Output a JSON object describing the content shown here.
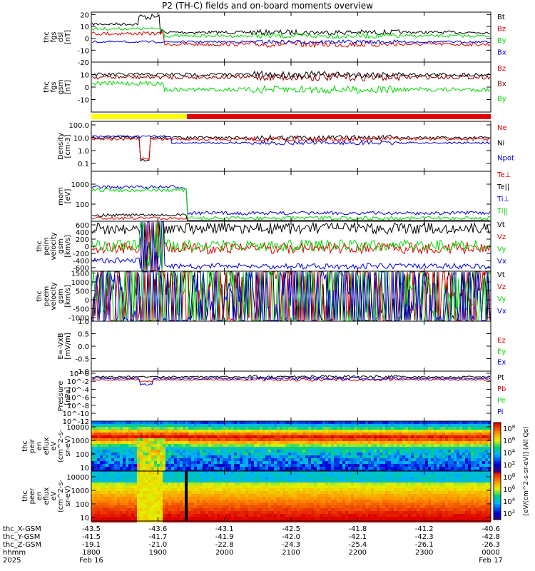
{
  "title": "P2 (TH-C) fields and on-board moments overview",
  "colors": {
    "black": "#000000",
    "red": "#e00000",
    "green": "#00d800",
    "blue": "#0000e0",
    "darkred": "#8b0000",
    "yellow": "#ffff00"
  },
  "chart_data": [
    {
      "type": "line",
      "id": "fgs_dsl",
      "ylabel": [
        "thc",
        "fgs",
        "dsl",
        "[nT]"
      ],
      "ylim": [
        -20,
        22
      ],
      "ticks": [
        "20",
        "10",
        "0",
        "-10",
        "-20"
      ],
      "legend": [
        "Bt",
        "Bz",
        "By",
        "Bx"
      ],
      "legend_colors": [
        "black",
        "red",
        "green",
        "blue"
      ]
    },
    {
      "type": "line",
      "id": "fgs_gsm",
      "ylabel": [
        "thc",
        "fgs",
        "gsm",
        "[nT]"
      ],
      "ylim": [
        -20,
        20
      ],
      "ticks": [
        "10",
        "0",
        "-10"
      ],
      "legend": [
        "Bz",
        "Bx",
        "By"
      ],
      "legend_colors": [
        "red",
        "darkred",
        "green"
      ]
    },
    {
      "type": "bar",
      "id": "mode_bar",
      "segments": [
        {
          "from": "1800",
          "to": "1918",
          "color": "yellow"
        },
        {
          "from": "1918",
          "to": "0000",
          "color": "red"
        }
      ]
    },
    {
      "type": "line",
      "id": "density",
      "scale": "log",
      "ylabel": [
        "Density",
        "[cm-3]"
      ],
      "ticks": [
        "100.0",
        "10.0",
        "1.0",
        "0.1"
      ],
      "legend": [
        "Ne",
        "Ni",
        "Npot"
      ],
      "legend_colors": [
        "red",
        "black",
        "blue"
      ]
    },
    {
      "type": "line",
      "id": "temp",
      "scale": "log",
      "ylabel": [
        "mom",
        "[eV]"
      ],
      "ticks": [
        "1000",
        "100"
      ],
      "legend": [
        "Te⊥",
        "Te||",
        "Ti⊥",
        "Ti||"
      ],
      "legend_colors": [
        "red",
        "black",
        "blue",
        "green"
      ]
    },
    {
      "type": "line",
      "id": "peim_vel",
      "ylabel": [
        "thc",
        "peim",
        "velocity",
        "gsm",
        "[km/s]"
      ],
      "ticks": [
        "600",
        "400",
        "200",
        "0",
        "-200",
        "-400",
        "-600"
      ],
      "legend": [
        "Vt",
        "Vz",
        "Vy",
        "Vx"
      ],
      "legend_colors": [
        "black",
        "red",
        "green",
        "blue"
      ]
    },
    {
      "type": "line",
      "id": "peem_vel",
      "ylabel": [
        "thc",
        "peem",
        "velocity",
        "gsm",
        "[km/s]"
      ],
      "ticks": [
        "1500",
        "1000",
        "500",
        "0",
        "-500",
        "-1000"
      ],
      "legend": [
        "Vt",
        "Vz",
        "Vy",
        "Vx"
      ],
      "legend_colors": [
        "black",
        "red",
        "green",
        "blue"
      ]
    },
    {
      "type": "line",
      "id": "efield",
      "ylabel": [
        "E=-VxB",
        "[mV/m]"
      ],
      "ticks": [
        "1.0",
        "0.5",
        "0.0",
        "-0.5",
        "-1.0"
      ],
      "legend": [
        "Ez",
        "Ey",
        "Ex"
      ],
      "legend_colors": [
        "red",
        "green",
        "blue"
      ]
    },
    {
      "type": "line",
      "id": "pressure",
      "scale": "log",
      "ylabel": [
        "Pressure",
        "[nPa]"
      ],
      "ticks": [
        "10^0",
        "10^-2",
        "10^-4",
        "10^-6",
        "10^-8",
        "10^-10",
        "10^-12"
      ],
      "legend": [
        "Pt",
        "Pb",
        "Pe",
        "Pi"
      ],
      "legend_colors": [
        "black",
        "red",
        "green",
        "blue"
      ]
    },
    {
      "type": "heatmap",
      "id": "peir",
      "ylabel": [
        "thc",
        "peir",
        "en",
        "eflux",
        "eV",
        "(cm^2-s-",
        "sr-eV)"
      ],
      "ticks": [
        "10000",
        "1000",
        "100",
        "10"
      ]
    },
    {
      "type": "heatmap",
      "id": "peer",
      "ylabel": [
        "thc",
        "peer",
        "en",
        "eflux",
        "eV",
        "(cm^2-s-",
        "sr-eV)"
      ],
      "ticks": [
        "10000",
        "1000",
        "100",
        "10"
      ]
    },
    {
      "type": "colorbar",
      "id": "cbar",
      "label": "[eV/(cm^2-s-sr-eV)] (All Qs)",
      "ticks": [
        "10^8",
        "10^6",
        "10^4",
        "10^2",
        "10^8",
        "10^6",
        "10^4",
        "10^2"
      ]
    }
  ],
  "footer": {
    "row_labels": [
      "thc_X-GSM",
      "thc_Y-GSM",
      "thc_Z-GSM",
      "hhmm",
      "2025"
    ],
    "x_gsm": [
      "-43.5",
      "-43.6",
      "-43.1",
      "-42.5",
      "-41.8",
      "-41.2",
      "-40.6"
    ],
    "y_gsm": [
      "-41.5",
      "-41.7",
      "-41.9",
      "-42.0",
      "-42.1",
      "-42.3",
      "-42.8"
    ],
    "z_gsm": [
      "-19.1",
      "-21.0",
      "-22.8",
      "-24.3",
      "-25.4",
      "-26.1",
      "-26.3"
    ],
    "hhmm": [
      "1800",
      "1900",
      "2000",
      "2100",
      "2200",
      "2300",
      "0000"
    ],
    "dates": [
      "Feb 16",
      "",
      "",
      "",
      "",
      "",
      "Feb 17"
    ]
  }
}
